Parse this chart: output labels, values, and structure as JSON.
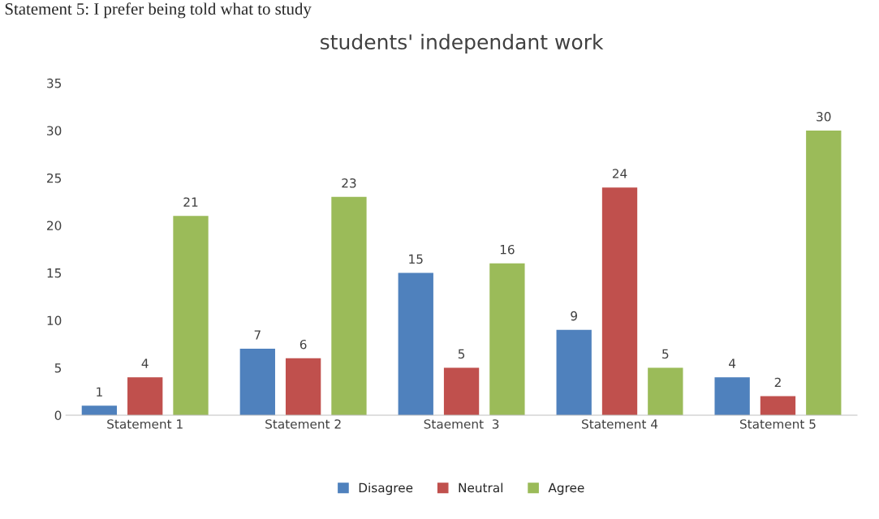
{
  "chart_data": {
    "type": "bar",
    "title": "students' independant work",
    "categories": [
      "Statement 1",
      "Statement 2",
      "Staement  3",
      "Statement 4",
      "Statement 5"
    ],
    "series": [
      {
        "name": "Disagree",
        "color": "#4f81bd",
        "values": [
          1,
          7,
          15,
          9,
          4
        ]
      },
      {
        "name": "Neutral",
        "color": "#c0504d",
        "values": [
          4,
          6,
          5,
          24,
          2
        ]
      },
      {
        "name": "Agree",
        "color": "#9bbb59",
        "values": [
          21,
          23,
          16,
          5,
          30
        ]
      }
    ],
    "ylim": [
      0,
      35
    ],
    "yticks": [
      0,
      5,
      10,
      15,
      20,
      25,
      30,
      35
    ],
    "data_labels": true,
    "grid": false,
    "legend": "bottom",
    "annotations": [
      "Statement 5: I prefer being told what to study"
    ]
  }
}
